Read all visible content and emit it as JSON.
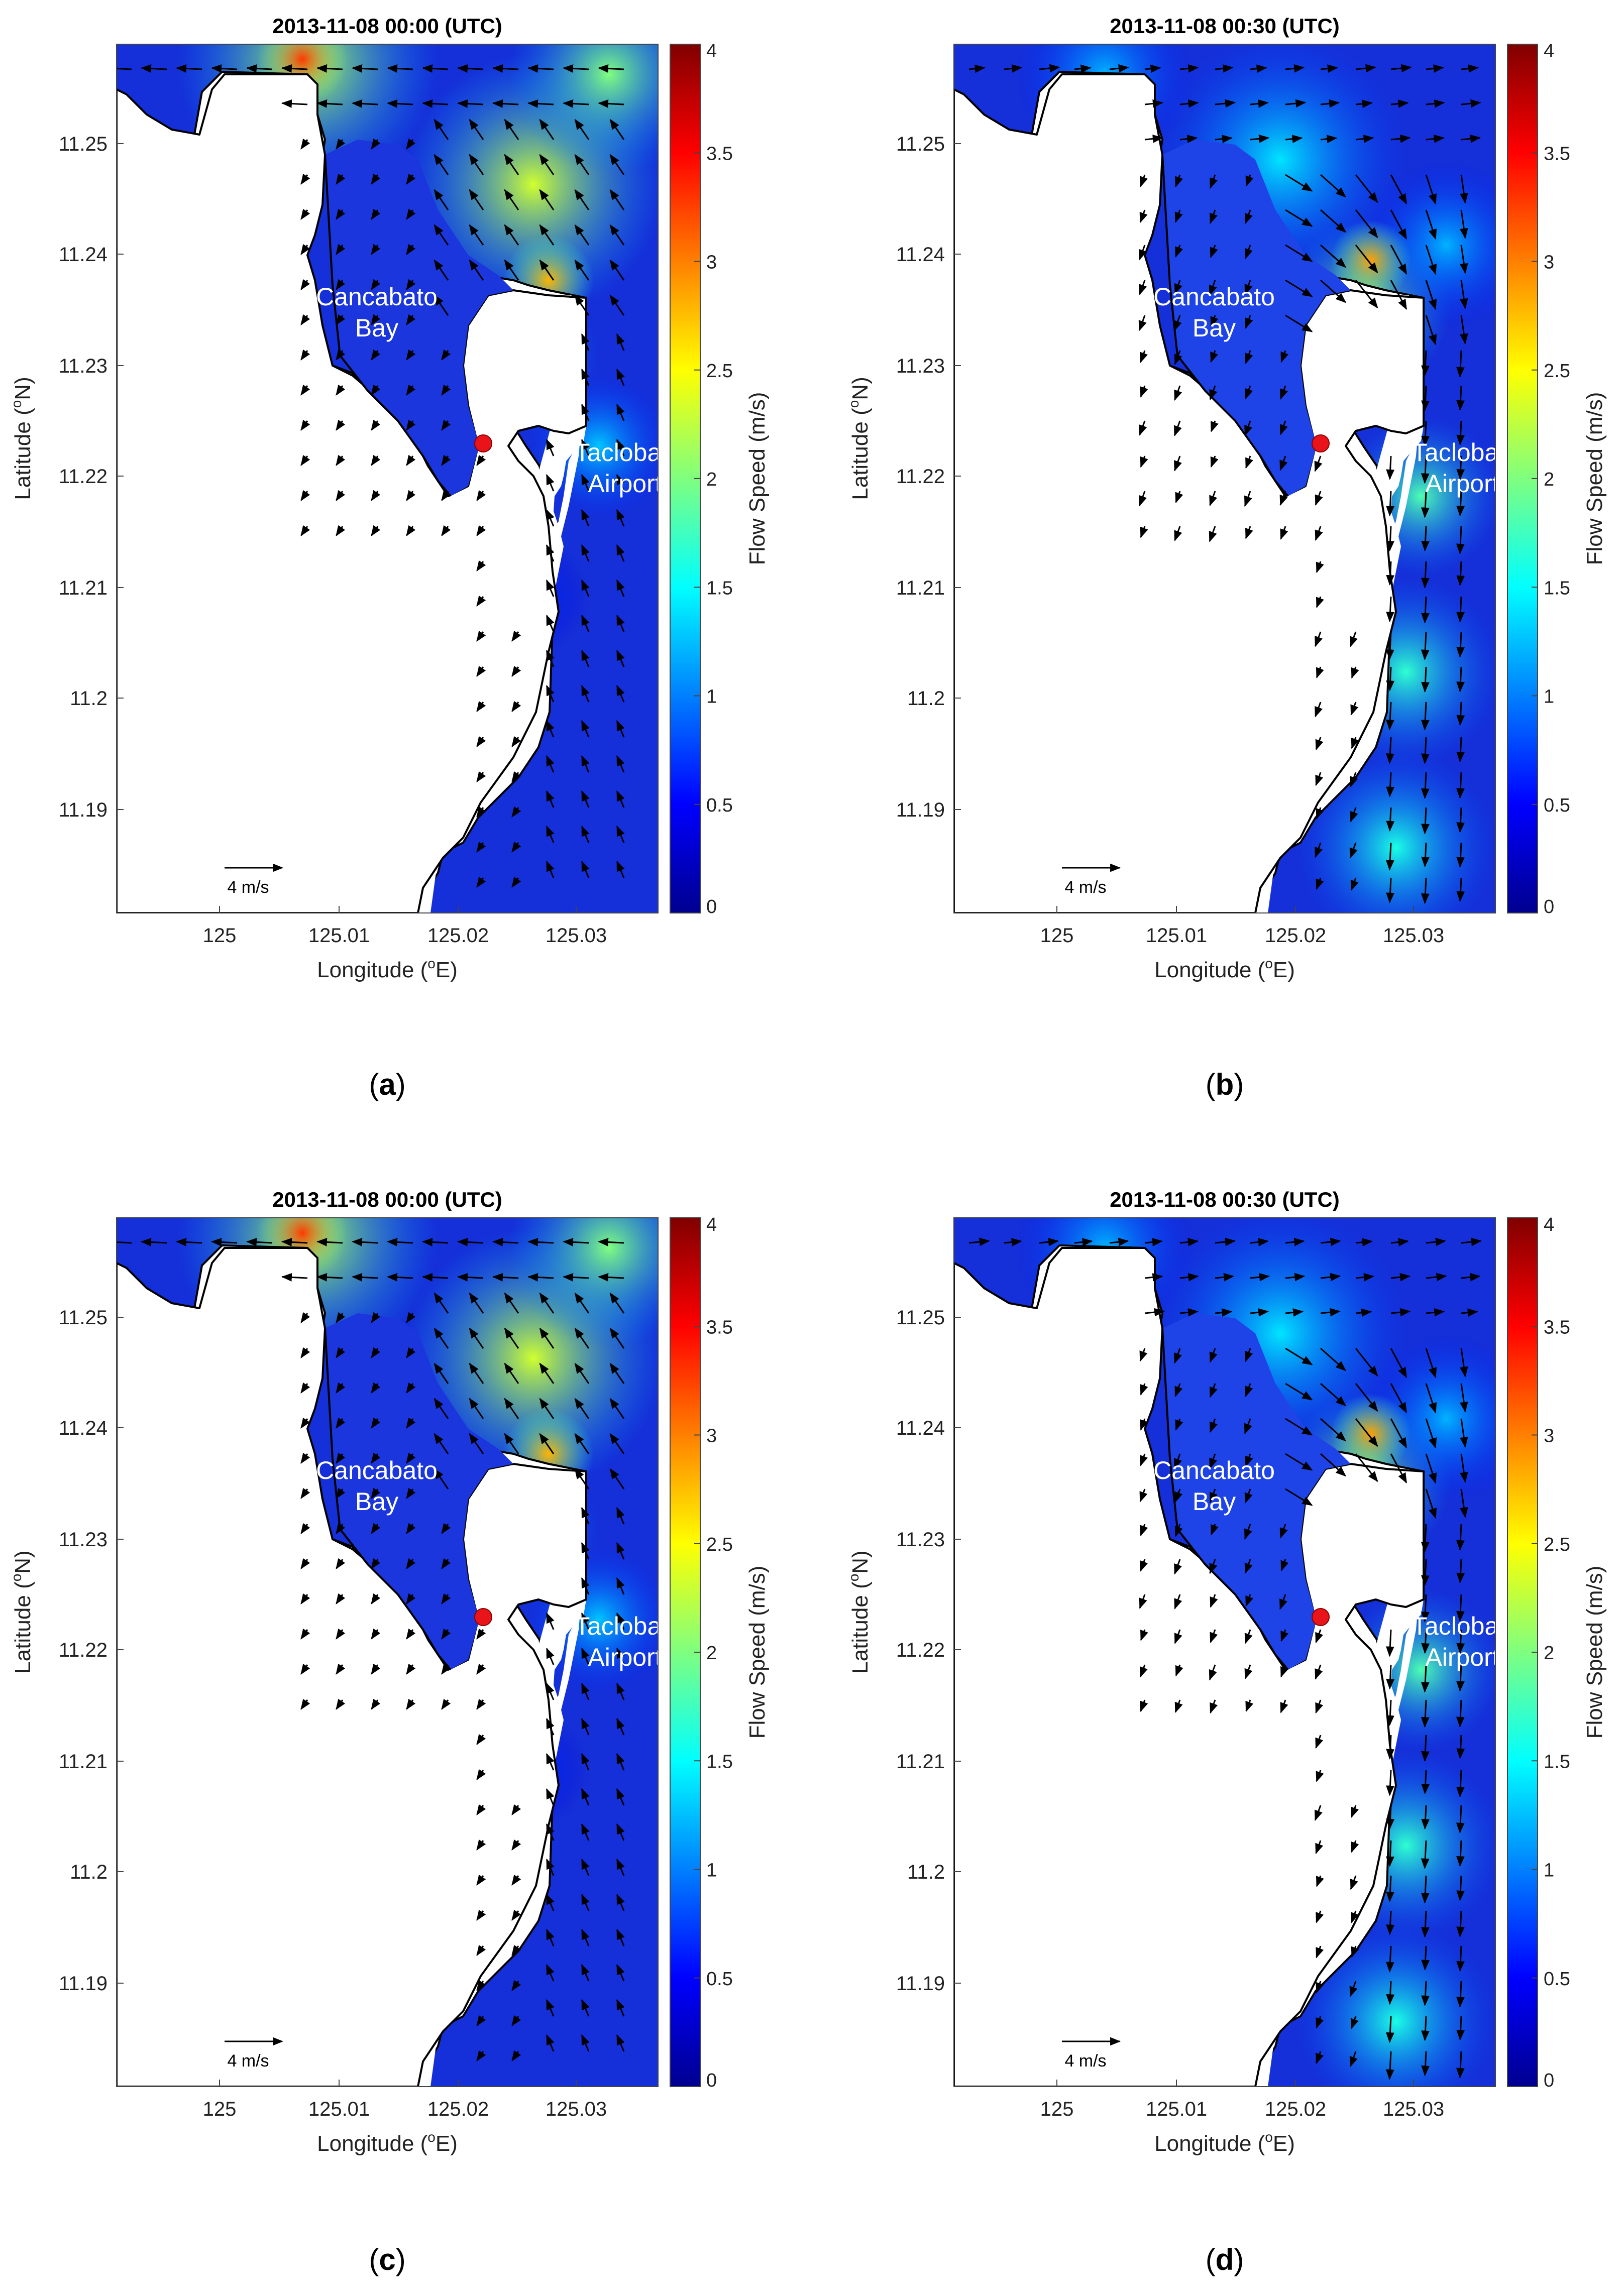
{
  "figure": {
    "panels": [
      {
        "id": "a",
        "caption_letter": "a",
        "title": "2013-11-08 00:00 (UTC)",
        "xlabel": "Longitude (",
        "xlabel_sup": "o",
        "xlabel_end": "E)",
        "ylabel": "Latitude (",
        "ylabel_sup": "o",
        "ylabel_end": "N)",
        "colorbar_label": "Flow Speed (m/s)",
        "scale_arrow_label": "4 m/s",
        "place_labels": [
          [
            "Cancabato",
            "Bay"
          ],
          [
            "Tacloban",
            "Airport"
          ]
        ],
        "flow_pattern": "ebb-north",
        "hotspot": "north-and-headland"
      },
      {
        "id": "b",
        "caption_letter": "b",
        "title": "2013-11-08 00:30 (UTC)",
        "xlabel": "Longitude (",
        "xlabel_sup": "o",
        "xlabel_end": "E)",
        "ylabel": "Latitude (",
        "ylabel_sup": "o",
        "ylabel_end": "N)",
        "colorbar_label": "Flow Speed (m/s)",
        "scale_arrow_label": "4 m/s",
        "place_labels": [
          [
            "Cancabato",
            "Bay"
          ],
          [
            "Tacloban",
            "Airport"
          ]
        ],
        "flow_pattern": "flood-south",
        "hotspot": "headland"
      },
      {
        "id": "c",
        "caption_letter": "c",
        "title": "2013-11-08 00:00 (UTC)",
        "xlabel": "Longitude (",
        "xlabel_sup": "o",
        "xlabel_end": "E)",
        "ylabel": "Latitude (",
        "ylabel_sup": "o",
        "ylabel_end": "N)",
        "colorbar_label": "Flow Speed (m/s)",
        "scale_arrow_label": "4 m/s",
        "place_labels": [
          [
            "Cancabato",
            "Bay"
          ],
          [
            "Tacloban",
            "Airport"
          ]
        ],
        "flow_pattern": "ebb-north",
        "hotspot": "north-and-headland"
      },
      {
        "id": "d",
        "caption_letter": "d",
        "title": "2013-11-08 00:30 (UTC)",
        "xlabel": "Longitude (",
        "xlabel_sup": "o",
        "xlabel_end": "E)",
        "ylabel": "Latitude (",
        "ylabel_sup": "o",
        "ylabel_end": "N)",
        "colorbar_label": "Flow Speed (m/s)",
        "scale_arrow_label": "4 m/s",
        "place_labels": [
          [
            "Cancabato",
            "Bay"
          ],
          [
            "Tacloban",
            "Airport"
          ]
        ],
        "flow_pattern": "flood-south",
        "hotspot": "headland"
      }
    ],
    "x_ticks": [
      "125",
      "125.01",
      "125.02",
      "125.03"
    ],
    "y_ticks": [
      "11.25",
      "11.24",
      "11.23",
      "11.22",
      "11.21",
      "11.2",
      "11.19"
    ],
    "colorbar_ticks": [
      "4",
      "3.5",
      "3",
      "2.5",
      "2",
      "1.5",
      "1",
      "0.5",
      "0"
    ],
    "colorbar_range": [
      0,
      4
    ],
    "colormap": "jet",
    "marker_color": "#e8141a",
    "land_color": "#ffffff",
    "coast_color": "#000000"
  }
}
